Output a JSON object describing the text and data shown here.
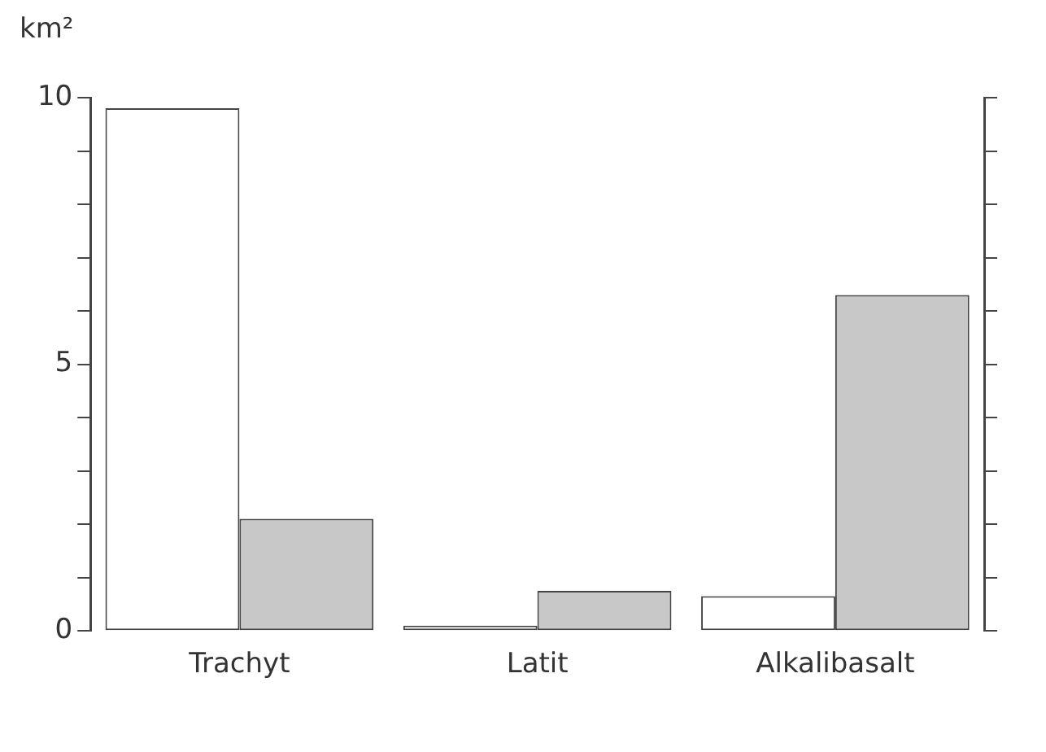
{
  "chart_data": {
    "type": "bar",
    "ylabel": "km²",
    "categories": [
      "Trachyt",
      "Latit",
      "Alkalibasalt"
    ],
    "series": [
      {
        "color": "#ffffff",
        "values": [
          9.8,
          0.1,
          0.65
        ]
      },
      {
        "color": "#c8c8c8",
        "values": [
          2.1,
          0.75,
          6.3
        ]
      }
    ],
    "ylim": [
      0,
      10
    ],
    "yticks": [
      0,
      {
        "value": 1,
        "label": null
      },
      {
        "value": 2,
        "label": null
      },
      {
        "value": 3,
        "label": null
      },
      {
        "value": 4,
        "label": null
      },
      5,
      {
        "value": 6,
        "label": null
      },
      {
        "value": 7,
        "label": null
      },
      {
        "value": 8,
        "label": null
      },
      {
        "value": 9,
        "label": null
      },
      10
    ],
    "grid": false,
    "legend": false
  }
}
